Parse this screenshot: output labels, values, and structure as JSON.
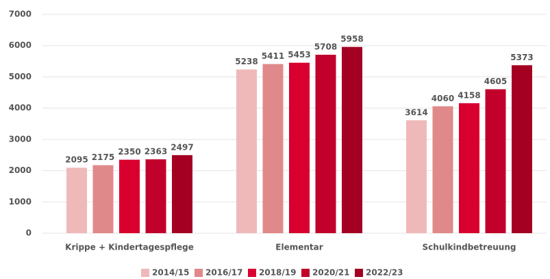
{
  "chart_data": {
    "type": "bar",
    "categories": [
      "Krippe + Kindertagespflege",
      "Elementar",
      "Schulkindbetreuung"
    ],
    "series": [
      {
        "name": "2014/15",
        "color": "#efb9b9",
        "values": [
          2095,
          5238,
          3614
        ]
      },
      {
        "name": "2016/17",
        "color": "#e0898a",
        "values": [
          2175,
          5411,
          4060
        ]
      },
      {
        "name": "2018/19",
        "color": "#d9002f",
        "values": [
          2350,
          5453,
          4158
        ]
      },
      {
        "name": "2020/21",
        "color": "#c1002c",
        "values": [
          2363,
          5708,
          4605
        ]
      },
      {
        "name": "2022/23",
        "color": "#a30022",
        "values": [
          2497,
          5958,
          5373
        ]
      }
    ],
    "ylim": [
      0,
      7000
    ],
    "yticks": [
      0,
      1000,
      2000,
      3000,
      4000,
      5000,
      6000,
      7000
    ],
    "grid": true,
    "legend": "bottom"
  }
}
